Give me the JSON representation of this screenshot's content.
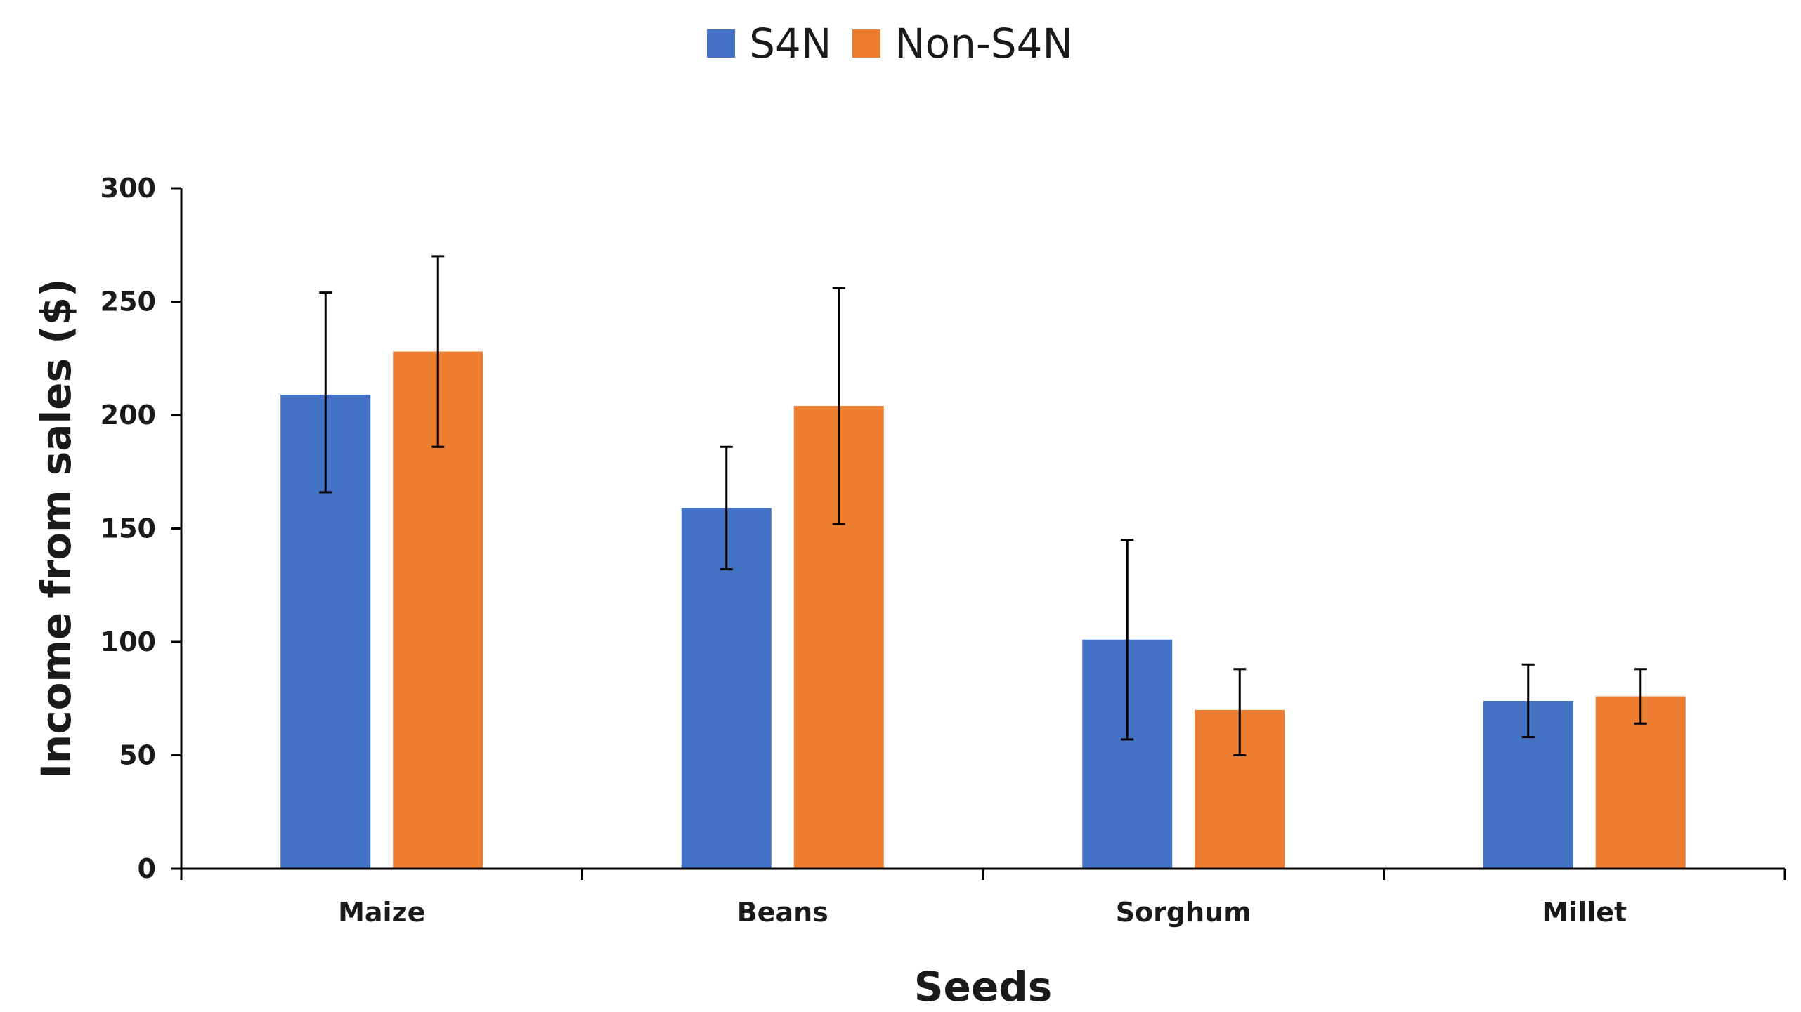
{
  "chart_data": {
    "type": "bar",
    "title": "",
    "xlabel": "Seeds",
    "ylabel": "Income from sales ($)",
    "categories": [
      "Maize",
      "Beans",
      "Sorghum",
      "Millet"
    ],
    "ylim": [
      0,
      300
    ],
    "yticks": [
      0,
      50,
      100,
      150,
      200,
      250,
      300
    ],
    "ytick_labels": [
      "0",
      "50",
      "100",
      "150",
      "200",
      "250",
      "300"
    ],
    "grid": false,
    "legend_position": "top-center",
    "series": [
      {
        "name": "S4N",
        "color": "#4472C4",
        "values": [
          209,
          159,
          101,
          74
        ],
        "error_low": [
          166,
          132,
          57,
          58
        ],
        "error_high": [
          254,
          186,
          145,
          90
        ]
      },
      {
        "name": "Non-S4N",
        "color": "#ED7D31",
        "values": [
          228,
          204,
          70,
          76
        ],
        "error_low": [
          186,
          152,
          50,
          64
        ],
        "error_high": [
          270,
          256,
          88,
          88
        ]
      }
    ]
  }
}
